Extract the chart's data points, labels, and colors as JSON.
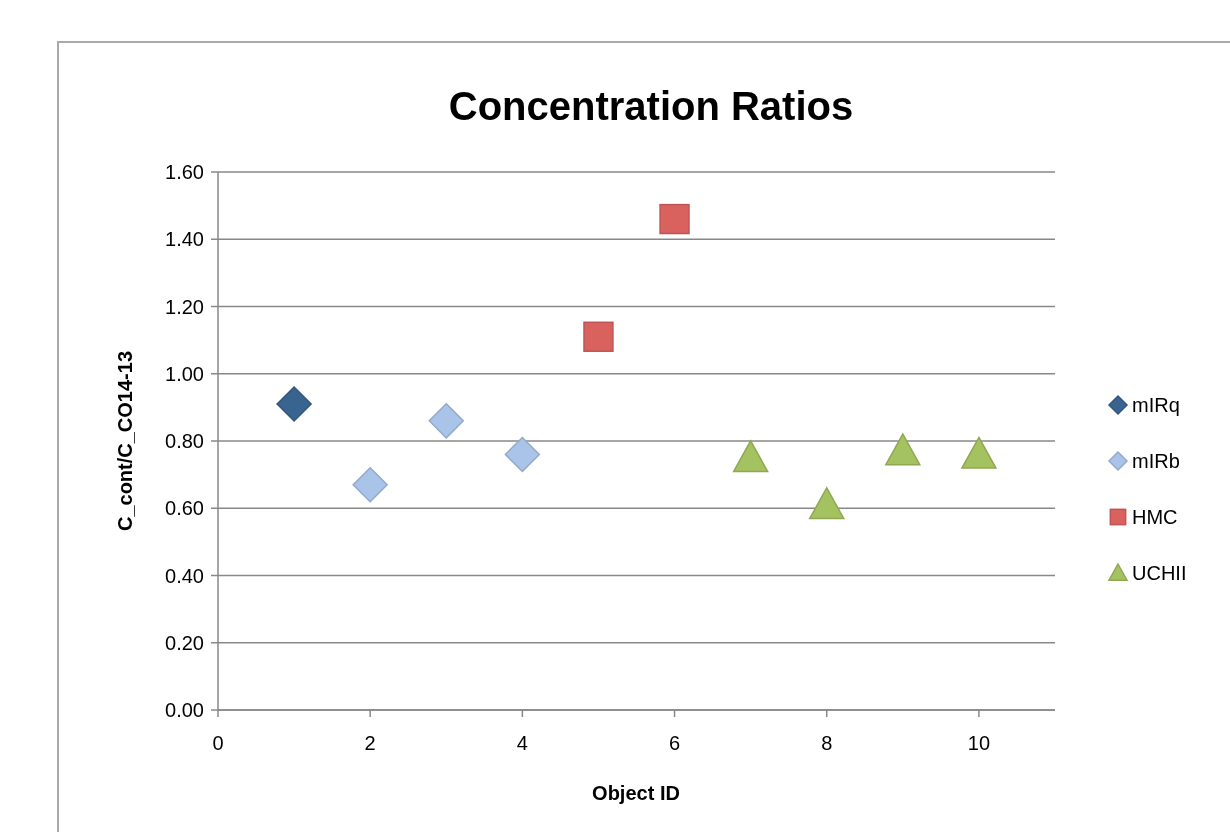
{
  "chart_data": {
    "type": "scatter",
    "title": "Concentration Ratios",
    "xlabel": "Object ID",
    "ylabel": "C_cont/C_CO14-13",
    "xlim": [
      0,
      11
    ],
    "xticks": [
      {
        "value": 0,
        "label": "0"
      },
      {
        "value": 2,
        "label": "2"
      },
      {
        "value": 4,
        "label": "4"
      },
      {
        "value": 6,
        "label": "6"
      },
      {
        "value": 8,
        "label": "8"
      },
      {
        "value": 10,
        "label": "10"
      }
    ],
    "ylim": [
      0,
      1.6
    ],
    "yticks": [
      {
        "value": 0,
        "label": "0.00"
      },
      {
        "value": 0.2,
        "label": "0.20"
      },
      {
        "value": 0.4,
        "label": "0.40"
      },
      {
        "value": 0.6,
        "label": "0.60"
      },
      {
        "value": 0.8,
        "label": "0.80"
      },
      {
        "value": 1.0,
        "label": "1.00"
      },
      {
        "value": 1.2,
        "label": "1.20"
      },
      {
        "value": 1.4,
        "label": "1.40"
      },
      {
        "value": 1.6,
        "label": "1.60"
      }
    ],
    "grid": "y",
    "legend": "right",
    "series": [
      {
        "name": "mIRq",
        "color": "#3a6490",
        "marker": "diamond",
        "x": [
          1
        ],
        "values": [
          0.91
        ]
      },
      {
        "name": "mIRb",
        "color": "#a9c4e8",
        "marker": "diamond",
        "x": [
          2,
          3,
          4
        ],
        "values": [
          0.67,
          0.86,
          0.76
        ]
      },
      {
        "name": "HMC",
        "color": "#d9625f",
        "marker": "square",
        "x": [
          5,
          6
        ],
        "values": [
          1.11,
          1.46
        ]
      },
      {
        "name": "UCHII",
        "color": "#a5c260",
        "marker": "triangle",
        "x": [
          7,
          8,
          9,
          10
        ],
        "values": [
          0.75,
          0.61,
          0.77,
          0.76
        ]
      }
    ]
  }
}
